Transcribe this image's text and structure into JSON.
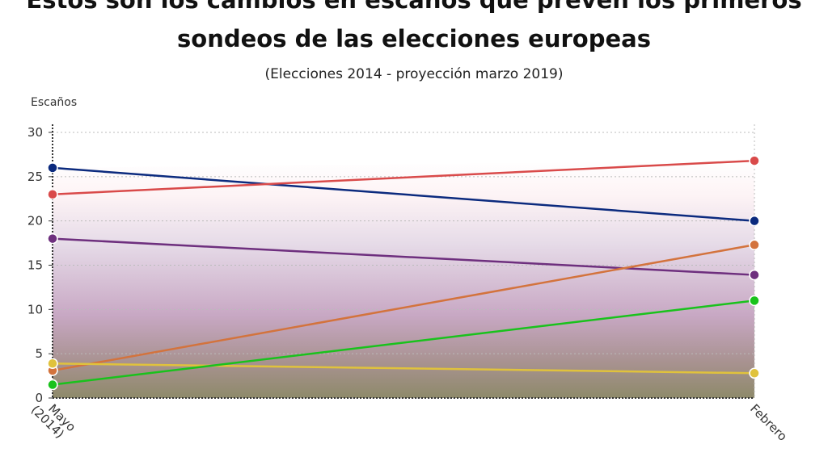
{
  "chart_data": {
    "type": "line",
    "title": "Estos son los cambios en escaños que prevén los primeros sondeos de las elecciones europeas",
    "title_line1": "Estos son los cambios en escaños que prevén los primeros",
    "title_line2": "sondeos de las elecciones europeas",
    "subtitle": "(Elecciones 2014 - proyección marzo 2019)",
    "xlabel": "",
    "ylabel": "Escaños",
    "categories": [
      "Mayo (2014)",
      "Febrero"
    ],
    "ylim": [
      0,
      30
    ],
    "yticks": [
      0,
      5,
      10,
      15,
      20,
      25,
      30
    ],
    "grid": true,
    "series": [
      {
        "color": "#0b2a7e",
        "values": [
          26,
          20
        ]
      },
      {
        "color": "#d94a4a",
        "values": [
          23,
          26.8
        ]
      },
      {
        "color": "#6e2f7e",
        "values": [
          18,
          13.9
        ]
      },
      {
        "color": "#d3733d",
        "values": [
          3.1,
          17.3
        ]
      },
      {
        "color": "#e0c23c",
        "values": [
          3.9,
          2.8
        ]
      },
      {
        "color": "#19c21c",
        "values": [
          1.5,
          11
        ]
      }
    ]
  }
}
